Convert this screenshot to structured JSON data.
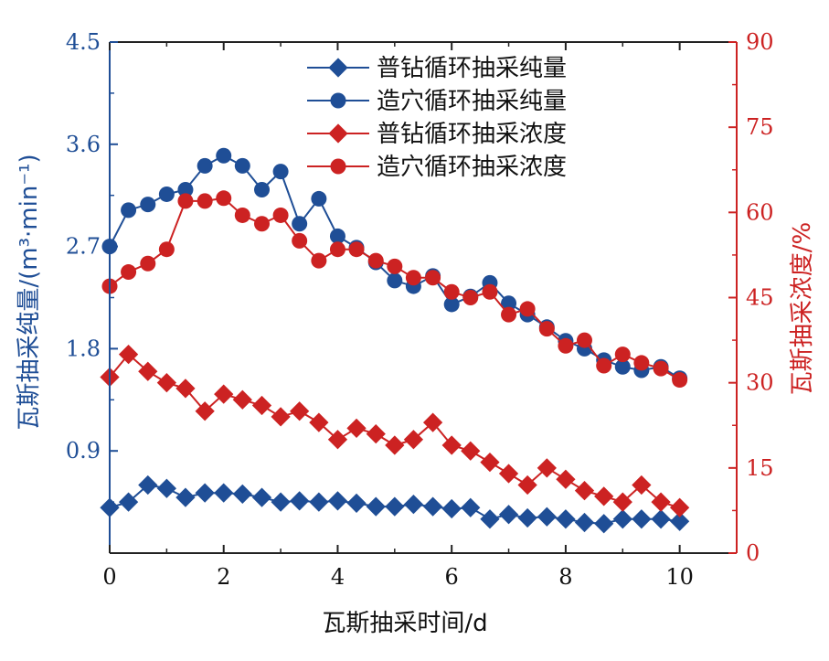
{
  "chart_data": {
    "type": "line",
    "title": "",
    "xlabel": "瓦斯抽采时间/d",
    "ylabel_left": "瓦斯抽采纯量/(m³·min⁻¹)",
    "ylabel_right": "瓦斯抽采浓度/%",
    "xlim": [
      0,
      11
    ],
    "ylim_left": [
      0,
      4.5
    ],
    "ylim_right": [
      0,
      90
    ],
    "x_ticks": [
      "0",
      "2",
      "4",
      "6",
      "8",
      "10"
    ],
    "y_left_ticks": [
      "0.9",
      "1.8",
      "2.7",
      "3.6",
      "4.5"
    ],
    "y_right_ticks": [
      "0",
      "15",
      "30",
      "45",
      "60",
      "75",
      "90"
    ],
    "grid": false,
    "legend_position": "top-center",
    "colors": {
      "left_axis": "#1f4e96",
      "right_axis": "#cc2222",
      "frame": "#222222"
    },
    "series": [
      {
        "name": "普钻循环抽采纯量",
        "axis": "left",
        "marker": "diamond",
        "color": "#1f4e96",
        "x": [
          0,
          0.33,
          0.67,
          1,
          1.33,
          1.67,
          2,
          2.33,
          2.67,
          3,
          3.33,
          3.67,
          4,
          4.33,
          4.67,
          5,
          5.33,
          5.67,
          6,
          6.33,
          6.67,
          7,
          7.33,
          7.67,
          8,
          8.33,
          8.67,
          9,
          9.33,
          9.67,
          10
        ],
        "y": [
          0.4,
          0.45,
          0.6,
          0.57,
          0.49,
          0.53,
          0.53,
          0.52,
          0.49,
          0.45,
          0.46,
          0.45,
          0.46,
          0.44,
          0.41,
          0.41,
          0.43,
          0.41,
          0.39,
          0.4,
          0.3,
          0.34,
          0.31,
          0.32,
          0.3,
          0.27,
          0.26,
          0.3,
          0.3,
          0.3,
          0.28
        ]
      },
      {
        "name": "造穴循环抽采纯量",
        "axis": "left",
        "marker": "circle",
        "color": "#1f4e96",
        "x": [
          0,
          0.33,
          0.67,
          1,
          1.33,
          1.67,
          2,
          2.33,
          2.67,
          3,
          3.33,
          3.67,
          4,
          4.33,
          4.67,
          5,
          5.33,
          5.67,
          6,
          6.33,
          6.67,
          7,
          7.33,
          7.67,
          8,
          8.33,
          8.67,
          9,
          9.33,
          9.67,
          10
        ],
        "y": [
          2.7,
          3.02,
          3.07,
          3.16,
          3.2,
          3.41,
          3.5,
          3.41,
          3.2,
          3.36,
          2.9,
          3.12,
          2.79,
          2.69,
          2.56,
          2.4,
          2.35,
          2.44,
          2.19,
          2.26,
          2.38,
          2.2,
          2.1,
          1.99,
          1.87,
          1.8,
          1.7,
          1.64,
          1.61,
          1.64,
          1.54
        ]
      },
      {
        "name": "普钻循环抽采浓度",
        "axis": "right",
        "marker": "diamond",
        "color": "#cc2222",
        "x": [
          0,
          0.33,
          0.67,
          1,
          1.33,
          1.67,
          2,
          2.33,
          2.67,
          3,
          3.33,
          3.67,
          4,
          4.33,
          4.67,
          5,
          5.33,
          5.67,
          6,
          6.33,
          6.67,
          7,
          7.33,
          7.67,
          8,
          8.33,
          8.67,
          9,
          9.33,
          9.67,
          10
        ],
        "y": [
          31,
          35,
          32,
          30,
          29,
          25,
          28,
          27,
          26,
          24,
          25,
          23,
          20,
          22,
          21,
          19,
          20,
          23,
          19,
          18,
          16,
          14,
          12,
          15,
          13,
          11,
          10,
          9,
          12,
          9,
          8
        ]
      },
      {
        "name": "造穴循环抽采浓度",
        "axis": "right",
        "marker": "circle",
        "color": "#cc2222",
        "x": [
          0,
          0.33,
          0.67,
          1,
          1.33,
          1.67,
          2,
          2.33,
          2.67,
          3,
          3.33,
          3.67,
          4,
          4.33,
          4.67,
          5,
          5.33,
          5.67,
          6,
          6.33,
          6.67,
          7,
          7.33,
          7.67,
          8,
          8.33,
          8.67,
          9,
          9.33,
          9.67,
          10
        ],
        "y": [
          47,
          49.5,
          51,
          53.5,
          62,
          62,
          62.5,
          59.5,
          58,
          59.5,
          55,
          51.5,
          53.5,
          53.5,
          51.5,
          50.5,
          48.5,
          48.5,
          46,
          45,
          46,
          42,
          43,
          39.5,
          36.5,
          37.5,
          33,
          35,
          33.5,
          32.5,
          30.5
        ]
      }
    ]
  }
}
